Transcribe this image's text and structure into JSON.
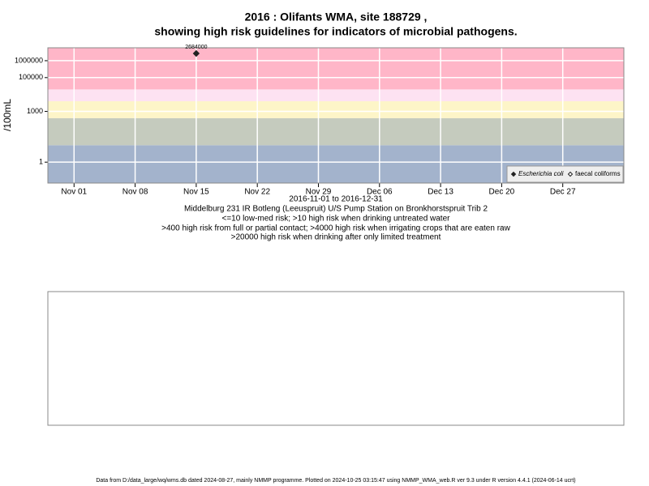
{
  "chart_data": {
    "type": "scatter",
    "title": "2016 : Olifants WMA, site 188729 ,",
    "subtitle": "showing high risk guidelines for indicators of microbial pathogens.",
    "ylabel": "/100mL",
    "xlabel": "2016-11-01 to 2016-12-31",
    "notes": [
      "Middelburg 231 IR Botleng (Leeuspruit) U/S Pump Station on Bronkhorstspruit Trib 2",
      "<=10 low-med risk; >10 high risk when drinking untreated water",
      ">400 high risk from full or partial contact; >4000 high risk when irrigating crops that are eaten raw",
      ">20000 high risk when drinking after only limited treatment"
    ],
    "footer": "Data from D:/data_large/wq/wms.db dated 2024-08-27, mainly NMMP programme. Plotted on 2024-10-25 03:15:47 using NMMP_WMA_web.R ver 9.3 under R version 4.4.1 (2024-06-14 ucrt)",
    "log_y": true,
    "ylim": [
      0.058,
      5800000
    ],
    "yticks": [
      1,
      1000,
      100000,
      1000000
    ],
    "xlim": [
      "2016-10-29",
      "2017-01-03"
    ],
    "xticks": [
      {
        "value": "2016-11-01",
        "label": "Nov 01"
      },
      {
        "value": "2016-11-08",
        "label": "Nov 08"
      },
      {
        "value": "2016-11-15",
        "label": "Nov 15"
      },
      {
        "value": "2016-11-22",
        "label": "Nov 22"
      },
      {
        "value": "2016-11-29",
        "label": "Nov 29"
      },
      {
        "value": "2016-12-06",
        "label": "Dec 06"
      },
      {
        "value": "2016-12-13",
        "label": "Dec 13"
      },
      {
        "value": "2016-12-20",
        "label": "Dec 20"
      },
      {
        "value": "2016-12-27",
        "label": "Dec 27"
      }
    ],
    "band_limits": [
      10,
      400,
      4000,
      20000
    ],
    "band_colors": [
      "#a3b3cc",
      "#c5cbbe",
      "#fdf5c8",
      "#fde2f2",
      "#ffb6c8"
    ],
    "series": [
      {
        "name": "Escherichia coli",
        "color": "#222222",
        "x": [
          "2016-11-15"
        ],
        "values": [
          2684000
        ]
      },
      {
        "name": "faecal coliforms",
        "color": "#222222",
        "x": [],
        "values": []
      }
    ]
  }
}
